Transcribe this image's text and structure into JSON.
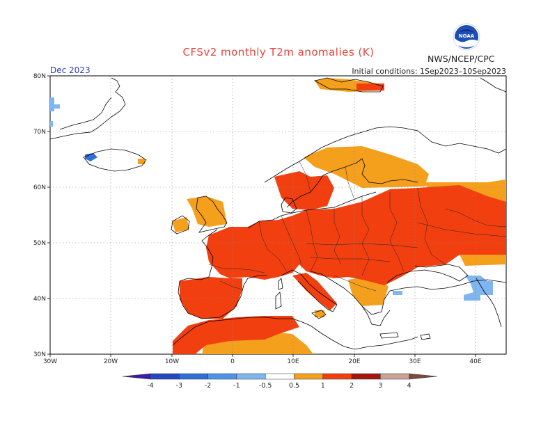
{
  "title": "CFSv2 monthly T2m anomalies (K)",
  "period": "Dec 2023",
  "initial_conditions": "Initial conditions: 1Sep2023–10Sep2023",
  "agency": "NWS/NCEP/CPC",
  "logo_text": "NOAA",
  "map": {
    "lon_range": [
      -30,
      45
    ],
    "lat_range": [
      30,
      80
    ],
    "lon_ticks": [
      "30W",
      "20W",
      "10W",
      "0",
      "10E",
      "20E",
      "30E",
      "40E"
    ],
    "lat_ticks": [
      "30N",
      "40N",
      "50N",
      "60N",
      "70N",
      "80N"
    ],
    "anomaly_colors": {
      "0.5-1": "#f5a01c",
      "1-2": "#f23f10",
      "-1--0.5": "#7fb6f0",
      "-3--2": "#2f70d8"
    }
  },
  "colorbar": {
    "labels": [
      "-4",
      "-3",
      "-2",
      "-1",
      "-0.5",
      "0.5",
      "1",
      "2",
      "3",
      "4"
    ],
    "colors": [
      "#3a1fa6",
      "#2448c2",
      "#2f70d8",
      "#4d93ea",
      "#7fb6f0",
      "#ffffff",
      "#f5a01c",
      "#f23f10",
      "#a5150f",
      "#caa393",
      "#7a4a3a"
    ]
  }
}
